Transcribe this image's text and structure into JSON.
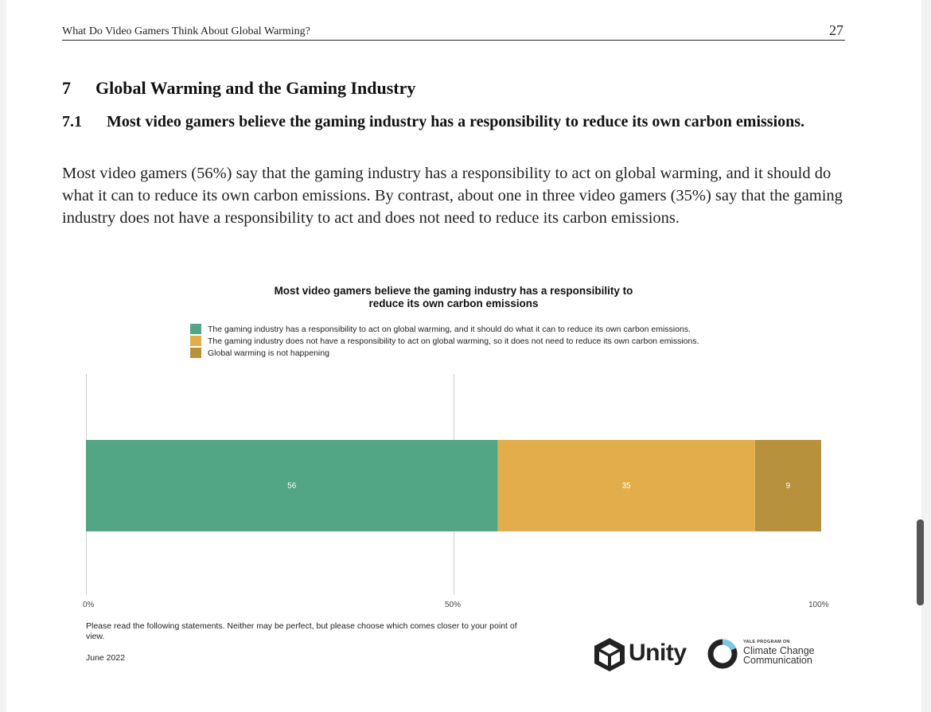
{
  "header": {
    "running_title": "What Do Video Gamers Think About Global Warming?",
    "page_number": "27"
  },
  "section": {
    "number": "7",
    "title": "Global Warming and the Gaming Industry"
  },
  "subsection": {
    "number": "7.1",
    "title": "Most video gamers believe the gaming industry has a responsibility to reduce its own carbon emissions."
  },
  "body_text": "Most video gamers (56%) say that the gaming industry has a responsibility to act on global warming, and it should do what it can to reduce its own carbon emissions. By contrast, about one in three video gamers (35%) say that the gaming industry does not have a responsibility to act and does not need to reduce its carbon emissions.",
  "chart_data": {
    "type": "bar",
    "orientation": "horizontal-stacked",
    "title_line1": "Most video gamers believe the gaming industry has a responsibility to",
    "title_line2": "reduce its own carbon emissions",
    "series": [
      {
        "name": "The gaming industry has a responsibility to act on global warming, and it should do what it can to reduce its own carbon emissions.",
        "value": 56,
        "label": "56",
        "color": "#52a585"
      },
      {
        "name": "The gaming industry does not have a responsibility to act on global warming, so it does not need to reduce its own carbon emissions.",
        "value": 35,
        "label": "35",
        "color": "#e3ad4b"
      },
      {
        "name": "Global warming is not happening",
        "value": 9,
        "label": "9",
        "color": "#b8913d"
      }
    ],
    "xlim": [
      0,
      100
    ],
    "x_ticks": [
      "0%",
      "50%",
      "100%"
    ],
    "grid": true,
    "note": "Please read the following statements. Neither may be perfect, but please choose which comes closer to your point of view.",
    "date": "June 2022"
  },
  "logos": {
    "unity": "Unity",
    "ycc_program": "YALE PROGRAM ON",
    "ycc_line1": "Climate Change",
    "ycc_line2": "Communication"
  }
}
